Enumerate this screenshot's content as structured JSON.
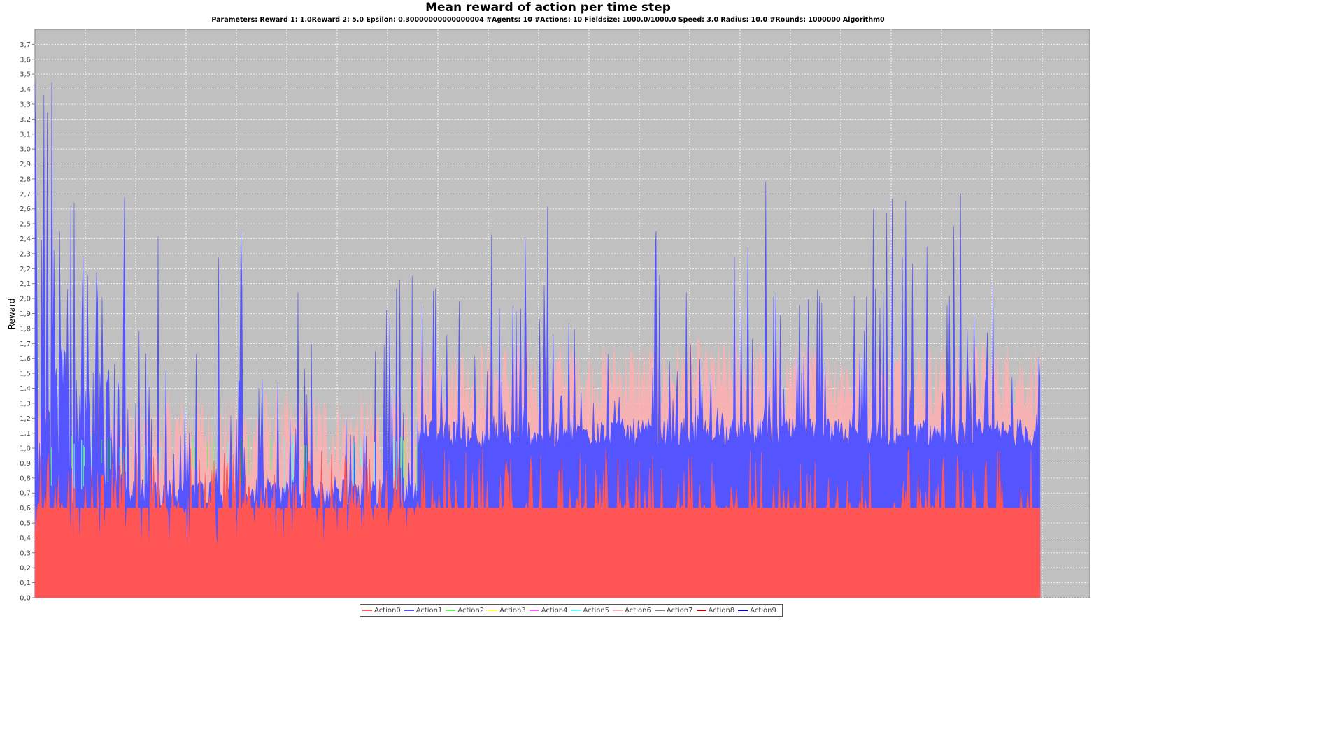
{
  "chart_data": {
    "type": "area",
    "title": "Mean reward of action per time step",
    "subtitle": "Parameters: Reward 1: 1.0Reward 2: 5.0 Epsilon: 0.30000000000000004 #Agents: 10 #Actions: 10 Fieldsize: 1000.0/1000.0 Speed: 3.0 Radius: 10.0 #Rounds: 1000000 Algorithm0",
    "xlabel": "",
    "ylabel": "Reward",
    "ylim": [
      0,
      3.8
    ],
    "yticks": [
      "0,0",
      "0,1",
      "0,2",
      "0,3",
      "0,4",
      "0,5",
      "0,6",
      "0,7",
      "0,8",
      "0,9",
      "1,0",
      "1,1",
      "1,2",
      "1,3",
      "1,4",
      "1,5",
      "1,6",
      "1,7",
      "1,8",
      "1,9",
      "2,0",
      "2,1",
      "2,2",
      "2,3",
      "2,4",
      "2,5",
      "2,6",
      "2,7",
      "2,8",
      "2,9",
      "3,0",
      "3,1",
      "3,2",
      "3,3",
      "3,4",
      "3,5",
      "3,6",
      "3,7"
    ],
    "grid": true,
    "legend_position": "bottom",
    "background_color": "#c0c0c0",
    "series": [
      {
        "name": "Action0",
        "color": "#ff5555",
        "segments": [
          {
            "from": 0,
            "to": 0.38,
            "base": 0.6,
            "low": 0.3,
            "high": 1.0
          },
          {
            "from": 0.38,
            "to": 1.0,
            "base": 0.6,
            "low": 0.6,
            "high": 1.0
          }
        ]
      },
      {
        "name": "Action1",
        "color": "#5555ff",
        "segments": [
          {
            "from": 0,
            "to": 0.04,
            "base_low": 0.6,
            "base_high": 2.2,
            "spike_max": 3.5
          },
          {
            "from": 0.04,
            "to": 0.09,
            "base_low": 0.6,
            "base_high": 1.6,
            "spike_max": 2.8
          },
          {
            "from": 0.09,
            "to": 0.38,
            "base_low": 0.6,
            "base_high": 0.8,
            "spike_max": 2.5
          },
          {
            "from": 0.38,
            "to": 1.0,
            "base_low": 1.0,
            "base_high": 1.2,
            "spike_max": 2.8
          }
        ]
      },
      {
        "name": "Action2",
        "color": "#55ff55"
      },
      {
        "name": "Action3",
        "color": "#ffff55"
      },
      {
        "name": "Action4",
        "color": "#ff55ff"
      },
      {
        "name": "Action5",
        "color": "#55ffff"
      },
      {
        "name": "Action6",
        "color": "#ffafaf"
      },
      {
        "name": "Action7",
        "color": "#808080"
      },
      {
        "name": "Action8",
        "color": "#c00000"
      },
      {
        "name": "Action9",
        "color": "#0000c0"
      }
    ],
    "highlight_colors": {
      "pink_band": "#ffafaf",
      "green_traces": "#55ff55",
      "cyan_traces": "#55ffff"
    }
  }
}
